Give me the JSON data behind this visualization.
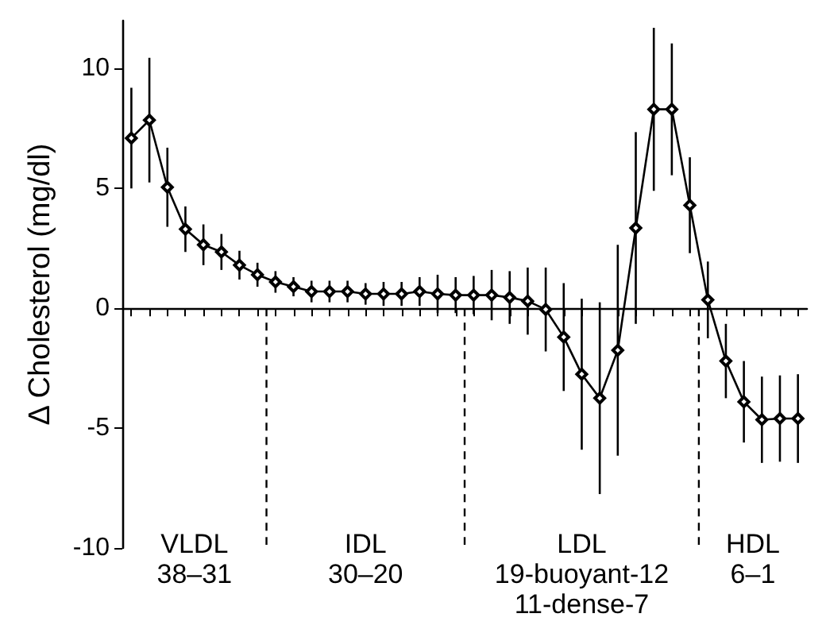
{
  "chart_data": {
    "type": "line",
    "ylabel": "Δ Cholesterol (mg/dl)",
    "categories": [
      null,
      null,
      null,
      null,
      null,
      null,
      null,
      null,
      null,
      null,
      null,
      null,
      null,
      null,
      null,
      null,
      null,
      null,
      null,
      null,
      null,
      null,
      null,
      null,
      null,
      null,
      null,
      null,
      null,
      null,
      null,
      null,
      null,
      null,
      null,
      null,
      null,
      null
    ],
    "series": [
      {
        "color": "#000000",
        "values": [
          7.1,
          7.85,
          5.05,
          3.3,
          2.65,
          2.35,
          1.8,
          1.4,
          1.1,
          0.9,
          0.7,
          0.7,
          0.7,
          0.6,
          0.6,
          0.6,
          0.7,
          0.6,
          0.55,
          0.55,
          0.55,
          0.45,
          0.3,
          -0.05,
          -1.2,
          -2.75,
          -3.75,
          -1.75,
          3.35,
          8.3,
          8.3,
          4.3,
          0.35,
          -2.2,
          -3.9,
          -4.65,
          -4.6,
          -4.6
        ],
        "errors": [
          2.1,
          2.6,
          1.65,
          0.95,
          0.85,
          0.75,
          0.6,
          0.5,
          0.45,
          0.4,
          0.45,
          0.45,
          0.45,
          0.45,
          0.5,
          0.5,
          0.6,
          0.8,
          0.75,
          0.8,
          1.05,
          1.1,
          1.4,
          1.75,
          2.25,
          3.15,
          4,
          4.4,
          4,
          3.4,
          2.75,
          2,
          1.6,
          1.55,
          1.7,
          1.8,
          1.8,
          1.85
        ]
      }
    ],
    "ylim": [
      -10,
      12
    ],
    "yticks": [
      -10,
      -5,
      0,
      5,
      10
    ],
    "tick_labels": "y",
    "marker": "diamond",
    "line_style": "solid",
    "annotations": [
      "VLDL\n38–31",
      "IDL\n30–20",
      "LDL\n19-buoyant-12\n11-dense-7",
      "HDL\n6–1"
    ]
  }
}
